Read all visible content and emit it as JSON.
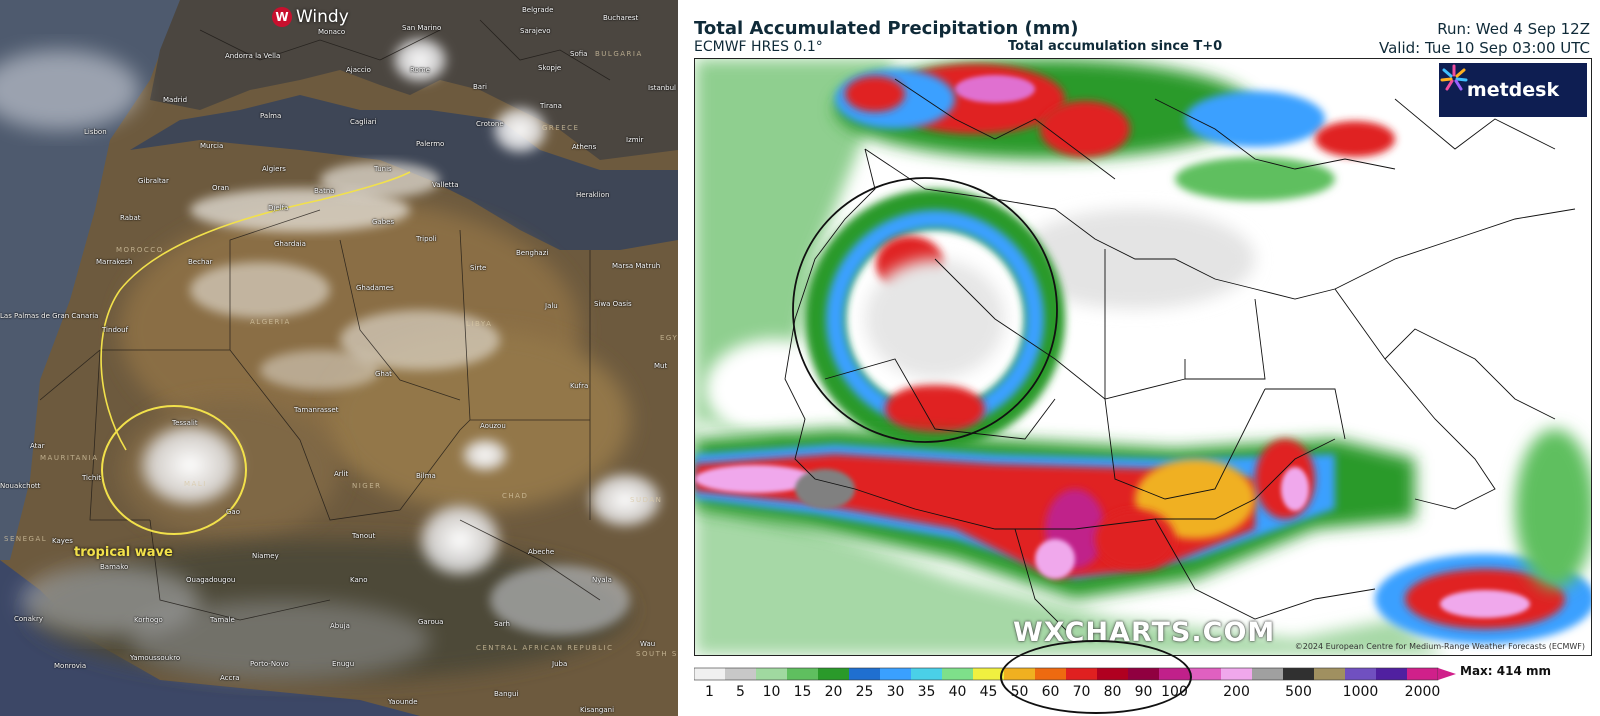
{
  "left_panel": {
    "brand": "Windy",
    "annotation": "tropical wave",
    "cities": [
      "Andorra la Vella",
      "Monaco",
      "San Marino",
      "Belgrade",
      "Bucharest",
      "Sarajevo",
      "Sofia",
      "Skopje",
      "Istanbul",
      "Madrid",
      "Ajaccio",
      "Rome",
      "Bari",
      "Lisbon",
      "Palma",
      "Cagliari",
      "Crotone",
      "Tirana",
      "Izmir",
      "Murcia",
      "Athens",
      "Algiers",
      "Tunis",
      "Palermo",
      "Gibraltar",
      "Oran",
      "Batna",
      "Valletta",
      "Heraklion",
      "Djelfa",
      "Gabes",
      "Rabat",
      "Ghardaia",
      "Tripoli",
      "Benghazi",
      "Marrakesh",
      "Bechar",
      "Sirte",
      "Marsa Matruh",
      "Ghadames",
      "Jalu",
      "Siwa Oasis",
      "Tindouf",
      "Ghat",
      "Kufra",
      "Mut",
      "Tamanrasset",
      "Aouzou",
      "Atar",
      "Tichit",
      "Arlit",
      "Bilma",
      "Gao",
      "Kayes",
      "Bamako",
      "Tanout",
      "Abeche",
      "Niamey",
      "Kano",
      "Nyala",
      "Conakry",
      "Korhogo",
      "Tamale",
      "Abuja",
      "Garoua",
      "Sarh",
      "Monrovia",
      "Yamoussoukro",
      "Accra",
      "Porto-Novo",
      "Enugu",
      "Bangui",
      "Yaounde",
      "Juba",
      "Wau",
      "Kisangani",
      "Ouagadougou",
      "Nouakchott",
      "Las Palmas de Gran Canaria",
      "Tessalit"
    ],
    "countries": [
      "MOROCCO",
      "ALGERIA",
      "LIBYA",
      "EGYPT",
      "MALI",
      "NIGER",
      "MAURITANIA",
      "SENEGAL",
      "CHAD",
      "SUDAN",
      "GREECE",
      "BULGARIA",
      "CENTRAL AFRICAN REPUBLIC",
      "SOUTH SUDAN"
    ]
  },
  "right_panel": {
    "title": "Total Accumulated Precipitation (mm)",
    "model": "ECMWF HRES 0.1°",
    "subtitle": "Total accumulation since T+0",
    "run": "Run: Wed 4 Sep 12Z",
    "valid": "Valid: Tue 10 Sep 03:00 UTC",
    "logo": "metdesk",
    "watermark": "WXCHARTS.COM",
    "copyright": "©2024 European Centre for Medium-Range Weather Forecasts (ECMWF)",
    "max_label": "Max: 414 mm",
    "colorbar": {
      "ticks": [
        "1",
        "5",
        "10",
        "15",
        "20",
        "25",
        "30",
        "35",
        "40",
        "45",
        "50",
        "60",
        "70",
        "80",
        "90",
        "100",
        "200",
        "500",
        "1000",
        "2000"
      ],
      "colors": [
        "#f0f0f0",
        "#c8c8c8",
        "#a0d9a0",
        "#5fbf5f",
        "#2a9a2a",
        "#1f6fd0",
        "#3aa0ff",
        "#4ad0e8",
        "#7ee08a",
        "#f0f040",
        "#f0b020",
        "#ee6a10",
        "#e02020",
        "#b00020",
        "#900040",
        "#c0208a",
        "#e060c0",
        "#f0a8ec",
        "#a0a0a0",
        "#303030",
        "#a09060",
        "#7050c0",
        "#5020a0",
        "#d0208a"
      ]
    }
  }
}
